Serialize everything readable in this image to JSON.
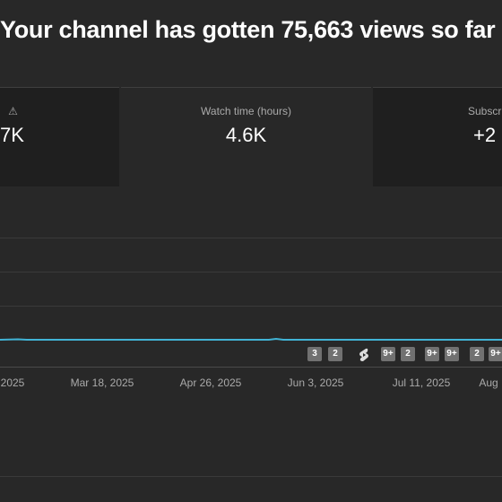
{
  "header": {
    "title": "Your channel has gotten 75,663 views so far"
  },
  "cards": [
    {
      "icon": "⚠",
      "value": "7K"
    },
    {
      "label": "Watch time (hours)",
      "value": "4.6K"
    },
    {
      "label": "Subscr",
      "value": "+2"
    }
  ],
  "chart": {
    "x_labels": [
      "2025",
      "Mar 18, 2025",
      "Apr 26, 2025",
      "Jun 3, 2025",
      "Jul 11, 2025",
      "Aug"
    ],
    "badges": [
      "3",
      "2",
      "9+",
      "2",
      "9+",
      "9+",
      "2",
      "9+"
    ]
  }
}
